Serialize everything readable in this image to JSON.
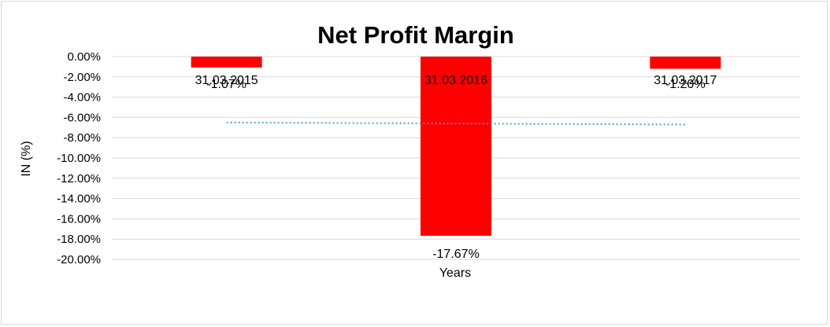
{
  "chart_data": {
    "type": "bar",
    "title": "Net Profit Margin",
    "xlabel": "Years",
    "ylabel": "IN (%)",
    "categories": [
      "31.03.2015",
      "31.03.2016",
      "31.03.2017"
    ],
    "values": [
      -1.07,
      -17.67,
      -1.2
    ],
    "data_labels": [
      "-1.07%",
      "-17.67%",
      "-1.20%"
    ],
    "ylim": [
      -20,
      0
    ],
    "yticks": [
      0,
      -2,
      -4,
      -6,
      -8,
      -10,
      -12,
      -14,
      -16,
      -18,
      -20
    ],
    "ytick_labels": [
      "0.00%",
      "-2.00%",
      "-4.00%",
      "-6.00%",
      "-8.00%",
      "-10.00%",
      "-12.00%",
      "-14.00%",
      "-16.00%",
      "-18.00%",
      "-20.00%"
    ],
    "trendline": {
      "type": "linear",
      "style": "dotted",
      "start": -6.5,
      "end": -6.7
    },
    "grid": true,
    "legend": "none",
    "colors": {
      "bar": "#ff0000",
      "trendline": "#5b9bd5",
      "grid": "#d9d9d9"
    }
  }
}
